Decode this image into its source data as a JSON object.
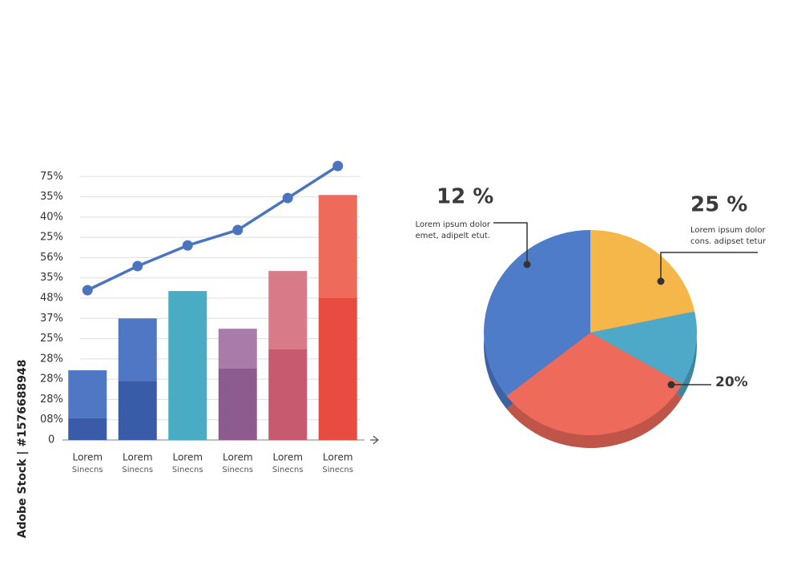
{
  "watermark": "Adobe Stock | #1576688948",
  "chart_data": [
    {
      "type": "bar-line",
      "categories": [
        "Lorem",
        "Lorem",
        "Lorem",
        "Lorem",
        "Lorem",
        "Lorem"
      ],
      "sublabels": [
        "Sinecns",
        "Sinecns",
        "Sinecns",
        "Sinecns",
        "Sinecns",
        "Sinecns"
      ],
      "ylim": [
        0,
        14
      ],
      "yticks": [
        0,
        {
          "value": 1,
          "label": "08%"
        },
        {
          "value": 2,
          "label": "28%"
        },
        {
          "value": 3,
          "label": "28%"
        },
        {
          "value": 4,
          "label": "28%"
        },
        {
          "value": 5,
          "label": "25%"
        },
        {
          "value": 6,
          "label": "37%"
        },
        {
          "value": 7,
          "label": "48%"
        },
        {
          "value": 8,
          "label": "35%"
        },
        {
          "value": 9,
          "label": "56%"
        },
        {
          "value": 10,
          "label": "25%"
        },
        {
          "value": 11,
          "label": "40%"
        },
        {
          "value": 12,
          "label": "35%"
        },
        {
          "value": 13,
          "label": "75%"
        }
      ],
      "grid": true,
      "series": [
        {
          "kind": "bar",
          "colors": [
            "#3a5ca8",
            "#3a5ca8",
            "#4aabc4",
            "#8e5b8e",
            "#c85a70",
            "#e84c40"
          ],
          "values": [
            1.07,
            2.92,
            7.35,
            3.52,
            4.47,
            7.0
          ]
        },
        {
          "kind": "bar",
          "colors": [
            "#5077c4",
            "#5077c4",
            "#4aabc4",
            "#a97ba8",
            "#d97a88",
            "#ee6a5a"
          ],
          "values": [
            2.37,
            3.08,
            null,
            1.97,
            3.87,
            5.09
          ]
        },
        {
          "kind": "line",
          "color": "#4a74c0",
          "values": [
            7.39,
            8.58,
            9.6,
            10.36,
            11.94,
            13.52
          ]
        }
      ]
    },
    {
      "type": "pie",
      "values": [
        21.7,
        11.7,
        31,
        35.6
      ],
      "colors": [
        "#f5b64a",
        "#4ea8c8",
        "#ee6a5a",
        "#4f7cc8"
      ],
      "annotations": [
        {
          "label": "12 %",
          "text": [
            "Lorem ipsum dolor",
            "emet, adipelt etut."
          ]
        },
        {
          "label": "25 %",
          "text": [
            "Lorem ipsum dolor",
            "cons. adipset tetur"
          ]
        },
        {
          "label": "20%"
        }
      ]
    }
  ]
}
